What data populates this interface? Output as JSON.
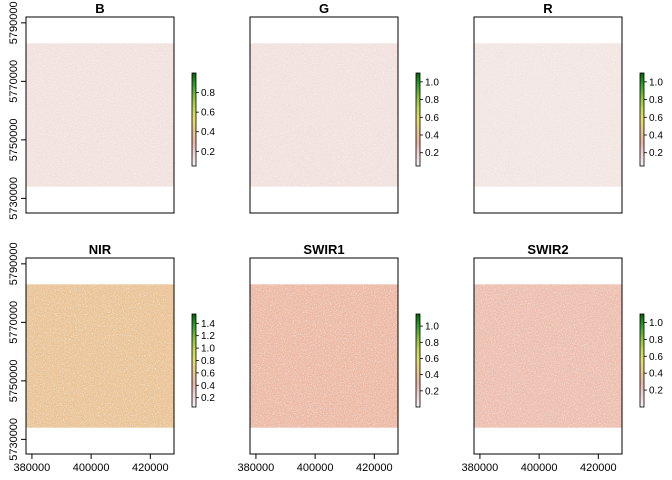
{
  "chart_data": {
    "type": "heatmap",
    "xlim": [
      378000,
      428000
    ],
    "ylim": [
      5725000,
      5792000
    ],
    "raster_extent": {
      "x": [
        378000,
        428000
      ],
      "y": [
        5734000,
        5783000
      ]
    },
    "x_ticks": [
      380000,
      400000,
      420000
    ],
    "x_tick_labels": [
      "380000",
      "400000",
      "420000"
    ],
    "y_ticks": [
      5730000,
      5750000,
      5770000,
      5790000
    ],
    "y_tick_labels": [
      "5730000",
      "5750000",
      "5770000",
      "5790000"
    ],
    "colors": {
      "palette": [
        "#f2f2f2",
        "#f1d7d2",
        "#ebb6a4",
        "#e8c78a",
        "#e4e065",
        "#c0d94c",
        "#7fbf3a",
        "#339e2f",
        "#006400"
      ]
    },
    "panels": [
      {
        "title": "B",
        "legend_ticks": [
          "0.2",
          "0.4",
          "0.6",
          "0.8"
        ],
        "legend_values": [
          0.2,
          0.4,
          0.6,
          0.8
        ],
        "legend_range": [
          0.05,
          1.0
        ],
        "typical_value": 0.13
      },
      {
        "title": "G",
        "legend_ticks": [
          "0.2",
          "0.4",
          "0.6",
          "0.8",
          "1.0"
        ],
        "legend_values": [
          0.2,
          0.4,
          0.6,
          0.8,
          1.0
        ],
        "legend_range": [
          0.05,
          1.1
        ],
        "typical_value": 0.14
      },
      {
        "title": "R",
        "legend_ticks": [
          "0.2",
          "0.4",
          "0.6",
          "0.8",
          "1.0"
        ],
        "legend_values": [
          0.2,
          0.4,
          0.6,
          0.8,
          1.0
        ],
        "legend_range": [
          0.05,
          1.1
        ],
        "typical_value": 0.12
      },
      {
        "title": "NIR",
        "legend_ticks": [
          "0.2",
          "0.4",
          "0.6",
          "0.8",
          "1.0",
          "1.2",
          "1.4"
        ],
        "legend_values": [
          0.2,
          0.4,
          0.6,
          0.8,
          1.0,
          1.2,
          1.4
        ],
        "legend_range": [
          0.05,
          1.55
        ],
        "typical_value": 0.55
      },
      {
        "title": "SWIR1",
        "legend_ticks": [
          "0.2",
          "0.4",
          "0.6",
          "0.8",
          "1.0"
        ],
        "legend_values": [
          0.2,
          0.4,
          0.6,
          0.8,
          1.0
        ],
        "legend_range": [
          0.0,
          1.15
        ],
        "typical_value": 0.3
      },
      {
        "title": "SWIR2",
        "legend_ticks": [
          "0.2",
          "0.4",
          "0.6",
          "0.8",
          "1.0"
        ],
        "legend_values": [
          0.2,
          0.4,
          0.6,
          0.8,
          1.0
        ],
        "legend_range": [
          0.0,
          1.1
        ],
        "typical_value": 0.25
      }
    ]
  }
}
